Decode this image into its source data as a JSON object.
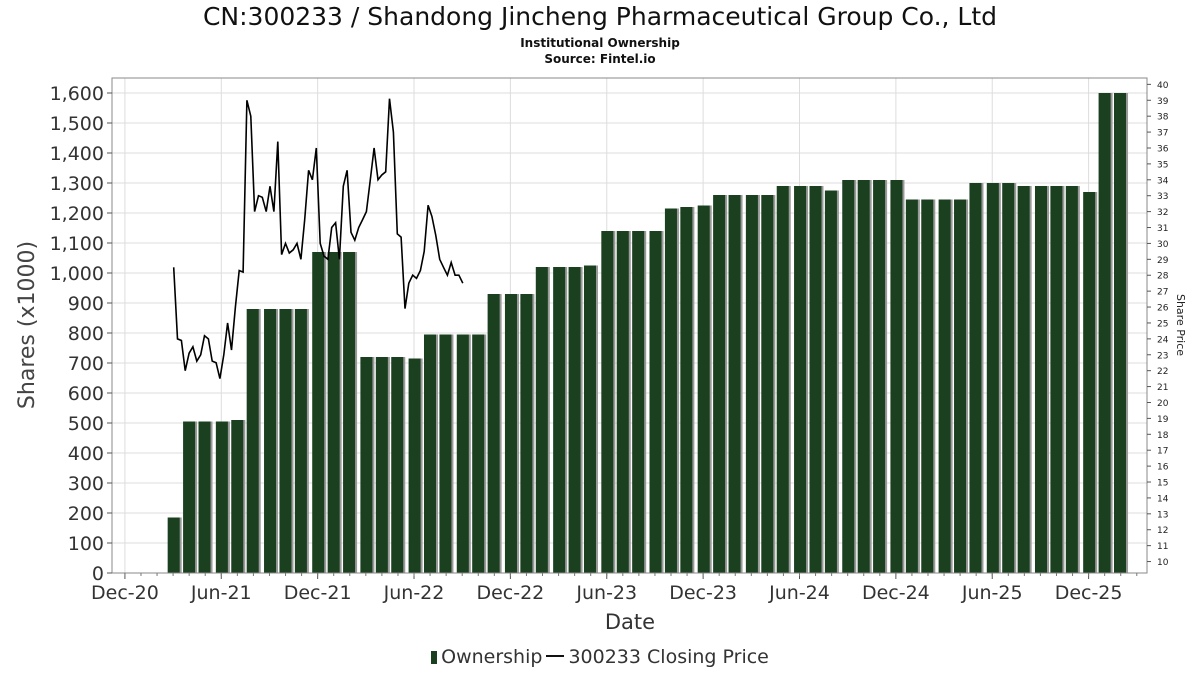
{
  "header": {
    "title": "CN:300233 / Shandong Jincheng Pharmaceutical Group Co., Ltd",
    "subtitle": "Institutional Ownership",
    "source": "Source: Fintel.io"
  },
  "legend": {
    "ownership": "Ownership",
    "price": "300233 Closing Price"
  },
  "colors": {
    "bar": "#1a4020",
    "bar_shadow": "#9a9a9a",
    "line": "#000000",
    "grid": "#dddddd"
  },
  "chart_data": {
    "type": "bar",
    "title": "CN:300233 / Shandong Jincheng Pharmaceutical Group Co., Ltd",
    "xlabel": "Date",
    "ylabel": "Shares (x1000)",
    "y2label": "Share Price",
    "ylim": [
      0,
      1650
    ],
    "y2lim": [
      9.28,
      40.4
    ],
    "xlim": [
      2020.85,
      2026.22
    ],
    "yticks": [
      0,
      100,
      200,
      300,
      400,
      500,
      600,
      700,
      800,
      900,
      1000,
      1100,
      1200,
      1300,
      1400,
      1500,
      1600
    ],
    "ytick_labels": [
      "0",
      "100",
      "200",
      "300",
      "400",
      "500",
      "600",
      "700",
      "800",
      "900",
      "1,000",
      "1,100",
      "1,200",
      "1,300",
      "1,400",
      "1,500",
      "1,600"
    ],
    "y2ticks": [
      10,
      11,
      12,
      13,
      14,
      15,
      16,
      17,
      18,
      19,
      20,
      21,
      22,
      23,
      24,
      25,
      26,
      27,
      28,
      29,
      30,
      31,
      32,
      33,
      34,
      35,
      36,
      37,
      38,
      39,
      40
    ],
    "xticks": [
      {
        "label": "Dec-20",
        "t": 2020.917
      },
      {
        "label": "Jun-21",
        "t": 2021.417
      },
      {
        "label": "Dec-21",
        "t": 2021.917
      },
      {
        "label": "Jun-22",
        "t": 2022.417
      },
      {
        "label": "Dec-22",
        "t": 2022.917
      },
      {
        "label": "Jun-23",
        "t": 2023.417
      },
      {
        "label": "Dec-23",
        "t": 2023.917
      },
      {
        "label": "Jun-24",
        "t": 2024.417
      },
      {
        "label": "Dec-24",
        "t": 2024.917
      },
      {
        "label": "Jun-25",
        "t": 2025.417
      },
      {
        "label": "Dec-25",
        "t": 2025.917
      }
    ],
    "series": [
      {
        "name": "Ownership",
        "type": "bar",
        "x": [
          2021.17,
          2021.25,
          2021.33,
          2021.42,
          2021.5,
          2021.58,
          2021.67,
          2021.75,
          2021.83,
          2021.92,
          2022.0,
          2022.08,
          2022.17,
          2022.25,
          2022.33,
          2022.42,
          2022.5,
          2022.58,
          2022.67,
          2022.75,
          2022.83,
          2022.92,
          2023.0,
          2023.08,
          2023.17,
          2023.25,
          2023.33,
          2023.42,
          2023.5,
          2023.58,
          2023.67,
          2023.75,
          2023.83,
          2023.92,
          2024.0,
          2024.08,
          2024.17,
          2024.25,
          2024.33,
          2024.42,
          2024.5,
          2024.58,
          2024.67,
          2024.75,
          2024.83,
          2024.92,
          2025.0,
          2025.08,
          2025.17,
          2025.25,
          2025.33,
          2025.42,
          2025.5,
          2025.58,
          2025.67,
          2025.75,
          2025.83,
          2025.92,
          2026.0,
          2026.08
        ],
        "values": [
          185,
          505,
          505,
          505,
          510,
          880,
          880,
          880,
          880,
          1070,
          1070,
          1070,
          720,
          720,
          720,
          715,
          795,
          795,
          795,
          795,
          930,
          930,
          930,
          1020,
          1020,
          1020,
          1025,
          1140,
          1140,
          1140,
          1140,
          1215,
          1220,
          1225,
          1260,
          1260,
          1260,
          1260,
          1290,
          1290,
          1290,
          1275,
          1310,
          1310,
          1310,
          1310,
          1245,
          1245,
          1245,
          1245,
          1300,
          1300,
          1300,
          1290,
          1290,
          1290,
          1290,
          1270,
          1600,
          1600
        ]
      },
      {
        "name": "300233 Closing Price",
        "type": "line",
        "x": [
          2021.17,
          2021.19,
          2021.21,
          2021.23,
          2021.25,
          2021.27,
          2021.29,
          2021.31,
          2021.33,
          2021.35,
          2021.37,
          2021.39,
          2021.41,
          2021.43,
          2021.45,
          2021.47,
          2021.49,
          2021.51,
          2021.53,
          2021.55,
          2021.57,
          2021.59,
          2021.61,
          2021.63,
          2021.65,
          2021.67,
          2021.69,
          2021.71,
          2021.73,
          2021.75,
          2021.77,
          2021.79,
          2021.81,
          2021.83,
          2021.85,
          2021.87,
          2021.89,
          2021.91,
          2021.93,
          2021.95,
          2021.97,
          2021.99,
          2022.01,
          2022.03,
          2022.05,
          2022.07,
          2022.09,
          2022.11,
          2022.13,
          2022.15,
          2022.17,
          2022.19,
          2022.21,
          2022.23,
          2022.25,
          2022.27,
          2022.29,
          2022.31,
          2022.33,
          2022.35,
          2022.37,
          2022.39,
          2022.41,
          2022.43,
          2022.45,
          2022.47,
          2022.49,
          2022.51,
          2022.53,
          2022.55,
          2022.57,
          2022.59,
          2022.61,
          2022.63,
          2022.65,
          2022.67
        ],
        "values": [
          28.5,
          24.0,
          23.9,
          22.0,
          23.1,
          23.5,
          22.6,
          23.0,
          24.2,
          24.0,
          22.6,
          22.5,
          21.5,
          23.0,
          25.0,
          23.3,
          26.0,
          28.3,
          28.2,
          39.0,
          38.0,
          32.0,
          33.0,
          32.9,
          32.0,
          33.6,
          32.0,
          36.4,
          29.3,
          30.0,
          29.4,
          29.6,
          30.0,
          29.0,
          31.5,
          34.6,
          34.0,
          36.0,
          30.0,
          29.2,
          29.0,
          31.0,
          31.3,
          29.0,
          33.6,
          34.6,
          30.7,
          30.2,
          31.0,
          31.5,
          32.0,
          34.0,
          36.0,
          34.0,
          34.3,
          34.5,
          39.1,
          37.0,
          30.6,
          30.4,
          25.9,
          27.5,
          28.0,
          27.8,
          28.3,
          29.5,
          32.4,
          31.7,
          30.5,
          29.0,
          28.5,
          28.0,
          28.8,
          28.0,
          28.0,
          27.5
        ]
      }
    ]
  }
}
